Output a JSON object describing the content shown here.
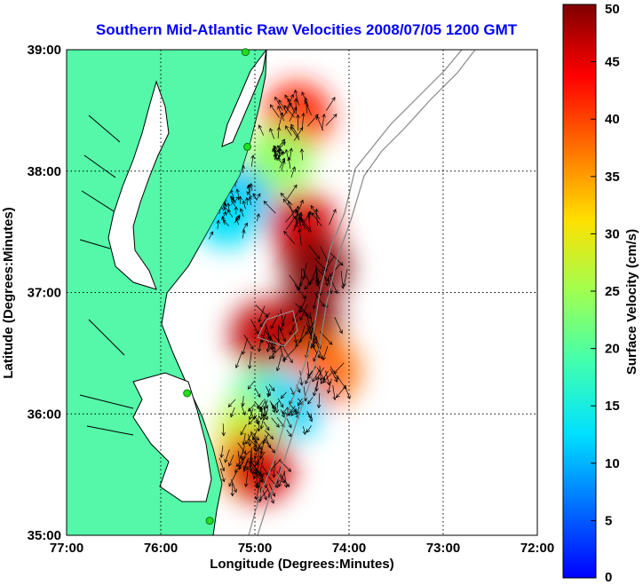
{
  "title": "Southern Mid-Atlantic Raw Velocities 2008/07/05 1200 GMT",
  "x_axis": {
    "label": "Longitude (Degrees:Minutes)",
    "ticks": [
      "77:00",
      "76:00",
      "75:00",
      "74:00",
      "73:00",
      "72:00"
    ]
  },
  "y_axis": {
    "label": "Latitude (Degrees:Minutes)",
    "ticks": [
      "39:00",
      "38:00",
      "37:00",
      "36:00",
      "35:00"
    ]
  },
  "colorbar": {
    "label": "Surface Velocity (cm/s)",
    "ticks": [
      "50",
      "45",
      "40",
      "35",
      "30",
      "25",
      "20",
      "15",
      "10",
      "5",
      "0"
    ],
    "range": [
      0,
      50
    ],
    "colormap": "jet"
  },
  "colors": {
    "land": "#55f7a8",
    "coastline": "#000000",
    "isobath": "#888888",
    "station": "#22dd22",
    "title": "#0000ff"
  },
  "stations": [
    {
      "lon": -75.1,
      "lat": 38.98
    },
    {
      "lon": -75.08,
      "lat": 38.2
    },
    {
      "lon": -75.72,
      "lat": 36.17
    },
    {
      "lon": -75.48,
      "lat": 35.12
    }
  ],
  "chart_data": {
    "type": "heatmap",
    "title": "Southern Mid-Atlantic Raw Velocities 2008/07/05 1200 GMT",
    "xlabel": "Longitude (Degrees:Minutes)",
    "ylabel": "Latitude (Degrees:Minutes)",
    "xlim": [
      -77,
      -72
    ],
    "ylim": [
      35,
      39
    ],
    "grid": true,
    "colorbar_label": "Surface Velocity (cm/s)",
    "clim": [
      0,
      50
    ],
    "speed_blobs": [
      {
        "lon": -74.55,
        "lat": 38.45,
        "speed": 42
      },
      {
        "lon": -74.75,
        "lat": 38.1,
        "speed": 24
      },
      {
        "lon": -75.2,
        "lat": 37.75,
        "speed": 9
      },
      {
        "lon": -75.3,
        "lat": 37.65,
        "speed": 13
      },
      {
        "lon": -74.5,
        "lat": 37.55,
        "speed": 46
      },
      {
        "lon": -74.35,
        "lat": 37.2,
        "speed": 50
      },
      {
        "lon": -74.45,
        "lat": 36.75,
        "speed": 50
      },
      {
        "lon": -74.9,
        "lat": 36.65,
        "speed": 47
      },
      {
        "lon": -74.25,
        "lat": 36.35,
        "speed": 38
      },
      {
        "lon": -74.9,
        "lat": 36.1,
        "speed": 20
      },
      {
        "lon": -74.65,
        "lat": 36.05,
        "speed": 12
      },
      {
        "lon": -75.05,
        "lat": 35.85,
        "speed": 27
      },
      {
        "lon": -75.05,
        "lat": 35.6,
        "speed": 34
      },
      {
        "lon": -74.95,
        "lat": 35.55,
        "speed": 46
      }
    ]
  }
}
